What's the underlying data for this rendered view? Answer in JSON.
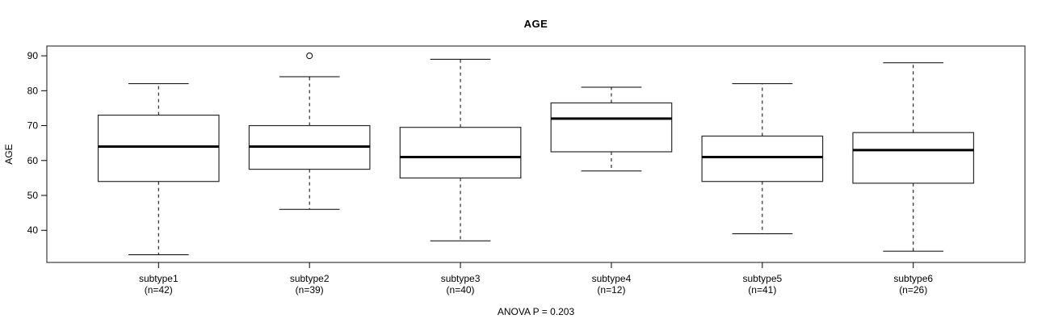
{
  "title": "AGE",
  "y_axis": {
    "label": "AGE",
    "ticks": [
      40,
      50,
      60,
      70,
      80,
      90
    ]
  },
  "annotation": "ANOVA P = 0.203",
  "colors": {
    "background": "#ffffff",
    "frame": "#4a4a4a",
    "box_border": "#2a2a2a",
    "box_fill": "#ffffff",
    "median": "#000000",
    "whisker": "#000000",
    "text": "#000000"
  },
  "chart_data": {
    "type": "box",
    "title": "AGE",
    "xlabel": "",
    "ylabel": "AGE",
    "ylim": [
      30.8,
      92.8
    ],
    "yticks": [
      40,
      50,
      60,
      70,
      80,
      90
    ],
    "grid": false,
    "legend": "none",
    "annotation": "ANOVA P = 0.203",
    "categories": [
      "subtype1",
      "subtype2",
      "subtype3",
      "subtype4",
      "subtype5",
      "subtype6"
    ],
    "boxes": [
      {
        "label": "subtype1",
        "n": 42,
        "n_label": "(n=42)",
        "whisker_low": 33,
        "q1": 54,
        "median": 64,
        "q3": 73,
        "whisker_high": 82,
        "outliers": []
      },
      {
        "label": "subtype2",
        "n": 39,
        "n_label": "(n=39)",
        "whisker_low": 46,
        "q1": 57.5,
        "median": 64,
        "q3": 70,
        "whisker_high": 84,
        "outliers": [
          90
        ]
      },
      {
        "label": "subtype3",
        "n": 40,
        "n_label": "(n=40)",
        "whisker_low": 37,
        "q1": 55,
        "median": 61,
        "q3": 69.5,
        "whisker_high": 89,
        "outliers": []
      },
      {
        "label": "subtype4",
        "n": 12,
        "n_label": "(n=12)",
        "whisker_low": 57,
        "q1": 62.5,
        "median": 72,
        "q3": 76.5,
        "whisker_high": 81,
        "outliers": []
      },
      {
        "label": "subtype5",
        "n": 41,
        "n_label": "(n=41)",
        "whisker_low": 39,
        "q1": 54,
        "median": 61,
        "q3": 67,
        "whisker_high": 82,
        "outliers": []
      },
      {
        "label": "subtype6",
        "n": 26,
        "n_label": "(n=26)",
        "whisker_low": 34,
        "q1": 53.5,
        "median": 63,
        "q3": 68,
        "whisker_high": 88,
        "outliers": []
      }
    ]
  }
}
